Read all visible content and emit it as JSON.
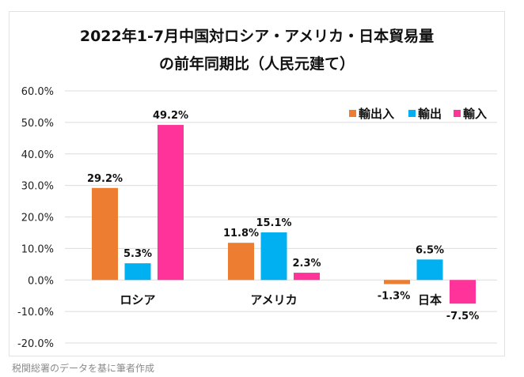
{
  "chart_data": {
    "type": "bar",
    "title_line1": "2022年1-7月中国対ロシア・アメリカ・日本貿易量",
    "title_line2": "の前年同期比（人民元建て）",
    "categories": [
      "ロシア",
      "アメリカ",
      "日本"
    ],
    "series": [
      {
        "name": "輸出入",
        "color": "#ED7D31",
        "values": [
          29.2,
          11.8,
          -1.3
        ],
        "labels": [
          "29.2%",
          "11.8%",
          "-1.3%"
        ]
      },
      {
        "name": "輸出",
        "color": "#00B0F0",
        "values": [
          5.3,
          15.1,
          6.5
        ],
        "labels": [
          "5.3%",
          "15.1%",
          "6.5%"
        ]
      },
      {
        "name": "輸入",
        "color": "#FF3399",
        "values": [
          49.2,
          2.3,
          -7.5
        ],
        "labels": [
          "49.2%",
          "2.3%",
          "-7.5%"
        ]
      }
    ],
    "ylim": [
      -20,
      60
    ],
    "yticks": [
      60,
      50,
      40,
      30,
      20,
      10,
      0,
      -10,
      -20
    ],
    "ytick_labels": [
      "60.0%",
      "50.0%",
      "40.0%",
      "30.0%",
      "20.0%",
      "10.0%",
      "0.0%",
      "-10.0%",
      "-20.0%"
    ],
    "xlabel": "",
    "ylabel": "",
    "grid": true,
    "legend_position": "top-right"
  },
  "source_note": "税関総署のデータを基に筆者作成"
}
